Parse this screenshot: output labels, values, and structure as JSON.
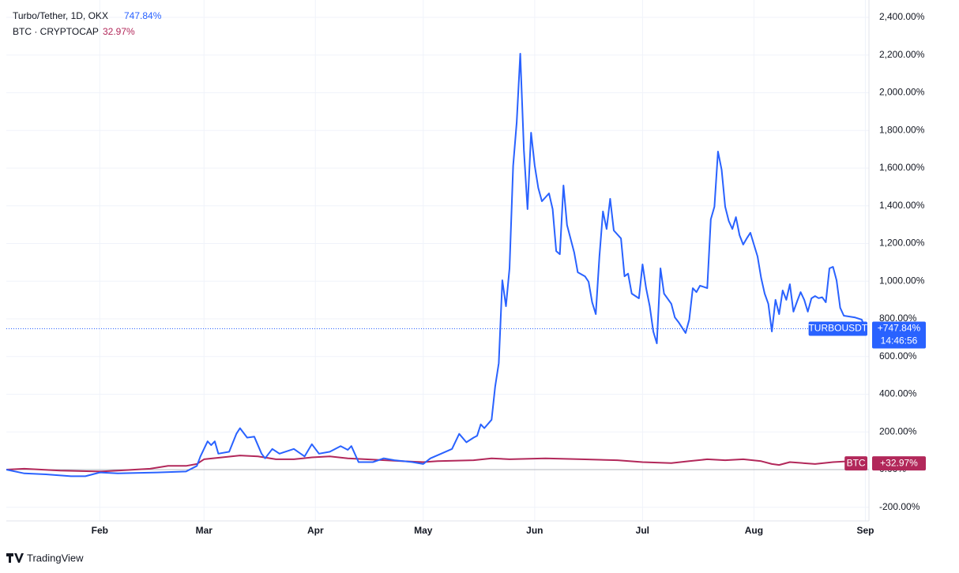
{
  "chart_data": {
    "type": "line",
    "brand": "TradingView",
    "xlim": [
      0,
      240
    ],
    "xticks": [
      {
        "value": 26,
        "label": "Feb"
      },
      {
        "value": 55,
        "label": "Mar"
      },
      {
        "value": 86,
        "label": "Apr"
      },
      {
        "value": 116,
        "label": "May"
      },
      {
        "value": 147,
        "label": "Jun"
      },
      {
        "value": 177,
        "label": "Jul"
      },
      {
        "value": 208,
        "label": "Aug"
      },
      {
        "value": 239,
        "label": "Sep"
      }
    ],
    "ylim": [
      -272,
      2471
    ],
    "yticks": [
      {
        "value": -200,
        "label": "-200.00%"
      },
      {
        "value": 0,
        "label": "0.00%"
      },
      {
        "value": 200,
        "label": "200.00%"
      },
      {
        "value": 400,
        "label": "400.00%"
      },
      {
        "value": 600,
        "label": "600.00%"
      },
      {
        "value": 800,
        "label": "800.00%"
      },
      {
        "value": 1000,
        "label": "1,000.00%"
      },
      {
        "value": 1200,
        "label": "1,200.00%"
      },
      {
        "value": 1400,
        "label": "1,400.00%"
      },
      {
        "value": 1600,
        "label": "1,600.00%"
      },
      {
        "value": 1800,
        "label": "1,800.00%"
      },
      {
        "value": 2000,
        "label": "2,000.00%"
      },
      {
        "value": 2200,
        "label": "2,200.00%"
      },
      {
        "value": 2400,
        "label": "2,400.00%"
      }
    ],
    "grid": true,
    "series": [
      {
        "name": "Turbo/Tether, 1D, OKX",
        "legend_value": "747.84%",
        "badge": "TURBOUSDT",
        "last_label": "+747.84%",
        "time_label": "14:46:56",
        "color": "#2962ff",
        "x": [
          0,
          5,
          11,
          18,
          22,
          26,
          31,
          42,
          50,
          53,
          54,
          56,
          57,
          58,
          59,
          62,
          64,
          65,
          67,
          69,
          71,
          72,
          74,
          76,
          80,
          83,
          85,
          87,
          90,
          93,
          95,
          96,
          98,
          102,
          105,
          108,
          113,
          116,
          118,
          121,
          124,
          126,
          128,
          130,
          131,
          132,
          133,
          135,
          136,
          137,
          138,
          139,
          140,
          141,
          142,
          143,
          144,
          145,
          146,
          147,
          148,
          149,
          151,
          152,
          153,
          154,
          155,
          156,
          158,
          159,
          161,
          162,
          163,
          164,
          165,
          166,
          167,
          168,
          169,
          171,
          172,
          173,
          174,
          176,
          177,
          178,
          179,
          180,
          181,
          182,
          183,
          185,
          186,
          187,
          189,
          190,
          191,
          192,
          193,
          194,
          195,
          196,
          197,
          198,
          199,
          200,
          201,
          202,
          203,
          204,
          205,
          206,
          207,
          208,
          209,
          210,
          211,
          212,
          213,
          214,
          215,
          216,
          217,
          218,
          219,
          220,
          221,
          222,
          223,
          224,
          225,
          226,
          227,
          228,
          229,
          230,
          231,
          232,
          233,
          236,
          238,
          239
        ],
        "values": [
          0,
          -20,
          -25,
          -35,
          -35,
          -15,
          -20,
          -15,
          -10,
          20,
          70,
          150,
          130,
          150,
          85,
          95,
          190,
          220,
          170,
          175,
          85,
          60,
          110,
          85,
          110,
          70,
          135,
          85,
          95,
          125,
          105,
          125,
          40,
          40,
          60,
          50,
          40,
          30,
          60,
          85,
          110,
          190,
          145,
          170,
          180,
          240,
          220,
          265,
          440,
          565,
          1005,
          867,
          1068,
          1613,
          1843,
          2207,
          1696,
          1382,
          1788,
          1613,
          1495,
          1424,
          1466,
          1382,
          1160,
          1143,
          1508,
          1298,
          1152,
          1047,
          1026,
          997,
          888,
          825,
          1131,
          1370,
          1277,
          1437,
          1269,
          1227,
          1026,
          1040,
          934,
          909,
          1089,
          963,
          867,
          733,
          670,
          1068,
          934,
          880,
          808,
          783,
          725,
          796,
          963,
          942,
          976,
          970,
          963,
          1328,
          1395,
          1688,
          1592,
          1395,
          1319,
          1277,
          1340,
          1244,
          1194,
          1227,
          1257,
          1194,
          1131,
          1018,
          934,
          880,
          733,
          901,
          825,
          951,
          901,
          984,
          838,
          892,
          942,
          901,
          838,
          909,
          921,
          910,
          915,
          888,
          1068,
          1076,
          1005,
          859,
          817,
          808,
          796,
          747.84
        ]
      },
      {
        "name": "BTC · CRYPTOCAP",
        "legend_value": "32.97%",
        "badge": "BTC",
        "last_label": "+32.97%",
        "color": "#b2285a",
        "x": [
          0,
          5,
          15,
          26,
          31,
          40,
          45,
          50,
          53,
          55,
          60,
          65,
          70,
          75,
          80,
          85,
          90,
          95,
          100,
          110,
          116,
          120,
          130,
          135,
          140,
          150,
          160,
          170,
          177,
          185,
          190,
          195,
          200,
          205,
          210,
          213,
          215,
          218,
          225,
          230,
          235,
          239
        ],
        "values": [
          0,
          5,
          -5,
          -10,
          -5,
          5,
          20,
          20,
          30,
          55,
          65,
          75,
          70,
          55,
          55,
          65,
          70,
          60,
          55,
          45,
          40,
          45,
          50,
          60,
          55,
          60,
          55,
          50,
          40,
          35,
          45,
          55,
          50,
          55,
          45,
          30,
          25,
          40,
          30,
          40,
          45,
          32.97
        ]
      }
    ]
  }
}
